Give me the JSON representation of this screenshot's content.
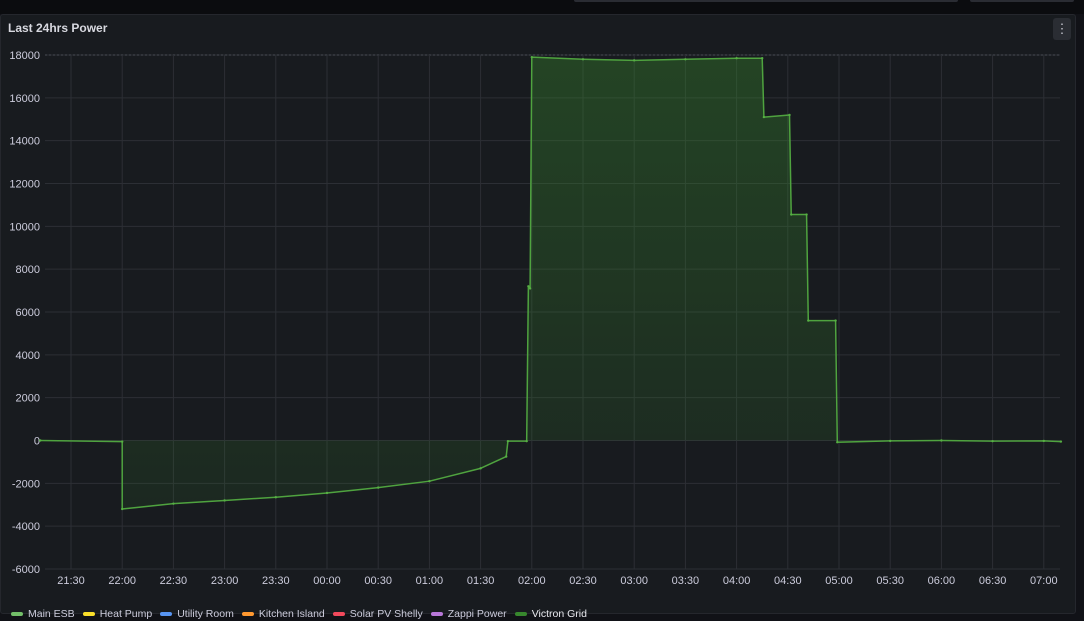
{
  "panel": {
    "title": "Last 24hrs Power",
    "menu_icon": "kebab-menu-icon"
  },
  "legend": [
    {
      "name": "Main ESB",
      "color": "#73bf69"
    },
    {
      "name": "Heat Pump",
      "color": "#fade2a"
    },
    {
      "name": "Utility Room",
      "color": "#5794f2"
    },
    {
      "name": "Kitchen Island",
      "color": "#ff9830"
    },
    {
      "name": "Solar PV Shelly",
      "color": "#f2495c"
    },
    {
      "name": "Zappi Power",
      "color": "#b877d9"
    },
    {
      "name": "Victron Grid",
      "color": "#37872d"
    }
  ],
  "chart_data": {
    "type": "area",
    "x_ticks": [
      "21:30",
      "22:00",
      "22:30",
      "23:00",
      "23:30",
      "00:00",
      "00:30",
      "01:00",
      "01:30",
      "02:00",
      "02:30",
      "03:00",
      "03:30",
      "04:00",
      "04:30",
      "05:00",
      "05:30",
      "06:00",
      "06:30",
      "07:00"
    ],
    "y_ticks": [
      "18000",
      "16000",
      "14000",
      "12000",
      "10000",
      "8000",
      "6000",
      "4000",
      "2000",
      "0",
      "-2000",
      "-4000",
      "-6000"
    ],
    "ylim": [
      -6000,
      18000
    ],
    "grid": true,
    "legend_position": "bottom",
    "series": [
      {
        "name": "Victron Grid",
        "color": "#37872d",
        "x": [
          "21:12",
          "22:00",
          "22:00",
          "22:30",
          "23:00",
          "23:30",
          "00:00",
          "00:30",
          "01:00",
          "01:30",
          "01:45",
          "01:46",
          "01:57",
          "01:58",
          "01:59",
          "02:00",
          "02:30",
          "03:00",
          "03:30",
          "04:00",
          "04:15",
          "04:16",
          "04:31",
          "04:32",
          "04:41",
          "04:42",
          "04:58",
          "04:59",
          "05:30",
          "06:00",
          "06:30",
          "07:00",
          "07:10"
        ],
        "y": [
          0,
          -50,
          -3200,
          -2950,
          -2800,
          -2650,
          -2450,
          -2200,
          -1900,
          -1300,
          -750,
          -30,
          -30,
          7200,
          7100,
          17900,
          17800,
          17750,
          17800,
          17850,
          17850,
          15100,
          15200,
          10550,
          10550,
          5600,
          5600,
          -80,
          -20,
          0,
          -30,
          -20,
          -50
        ]
      }
    ]
  }
}
